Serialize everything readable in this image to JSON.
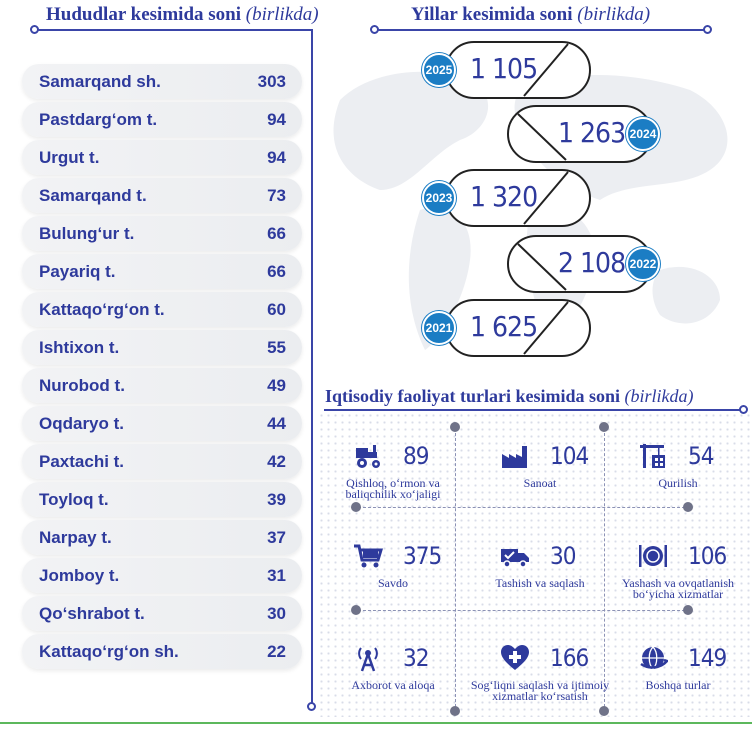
{
  "regions": {
    "title": "Hududlar kesimida soni",
    "unit": "(birlikda)",
    "items": [
      {
        "name": "Samarqand sh.",
        "value": "303"
      },
      {
        "name": "Pastdarg‘om t.",
        "value": "94"
      },
      {
        "name": "Urgut t.",
        "value": "94"
      },
      {
        "name": "Samarqand t.",
        "value": "73"
      },
      {
        "name": "Bulung‘ur t.",
        "value": "66"
      },
      {
        "name": "Payariq t.",
        "value": "66"
      },
      {
        "name": "Kattaqo‘rg‘on t.",
        "value": "60"
      },
      {
        "name": "Ishtixon t.",
        "value": "55"
      },
      {
        "name": "Nurobod t.",
        "value": "49"
      },
      {
        "name": "Oqdaryo t.",
        "value": "44"
      },
      {
        "name": "Paxtachi t.",
        "value": "42"
      },
      {
        "name": "Toyloq t.",
        "value": "39"
      },
      {
        "name": "Narpay t.",
        "value": "37"
      },
      {
        "name": "Jomboy t.",
        "value": "31"
      },
      {
        "name": "Qo‘shrabot t.",
        "value": "30"
      },
      {
        "name": "Kattaqo‘rg‘on sh.",
        "value": "22"
      }
    ]
  },
  "years": {
    "title": "Yillar kesimida soni",
    "unit": "(birlikda)",
    "items": [
      {
        "year": "2025",
        "value": "1 105",
        "side": "left"
      },
      {
        "year": "2024",
        "value": "1 263",
        "side": "right"
      },
      {
        "year": "2023",
        "value": "1 320",
        "side": "left"
      },
      {
        "year": "2022",
        "value": "2 108",
        "side": "right"
      },
      {
        "year": "2021",
        "value": "1 625",
        "side": "left"
      }
    ]
  },
  "activity": {
    "title": "Iqtisodiy faoliyat turlari kesimida soni",
    "unit": "(birlikda)",
    "items": [
      {
        "icon": "tractor-icon",
        "value": "89",
        "label": "Qishloq, o‘rmon va baliqchilik xo‘jaligi"
      },
      {
        "icon": "factory-icon",
        "value": "104",
        "label": "Sanoat"
      },
      {
        "icon": "crane-icon",
        "value": "54",
        "label": "Qurilish"
      },
      {
        "icon": "cart-icon",
        "value": "375",
        "label": "Savdo"
      },
      {
        "icon": "truck-icon",
        "value": "30",
        "label": "Tashish va saqlash"
      },
      {
        "icon": "dining-icon",
        "value": "106",
        "label": "Yashash va ovqatlanish bo‘yicha xizmatlar"
      },
      {
        "icon": "antenna-icon",
        "value": "32",
        "label": "Axborot va aloqa"
      },
      {
        "icon": "health-icon",
        "value": "166",
        "label": "Sog‘liqni saqlash va ijtimoiy xizmatlar ko‘rsatish"
      },
      {
        "icon": "globe-icon",
        "value": "149",
        "label": "Boshqa turlar"
      }
    ]
  },
  "colors": {
    "primary": "#2e3a9c",
    "badge": "#1b7dc4",
    "accent_line": "#5cb85c",
    "row_bg": "#eef0f3"
  },
  "chart_data": [
    {
      "type": "bar",
      "title": "Hududlar kesimida soni",
      "categories": [
        "Samarqand sh.",
        "Pastdarg‘om t.",
        "Urgut t.",
        "Samarqand t.",
        "Bulung‘ur t.",
        "Payariq t.",
        "Kattaqo‘rg‘on t.",
        "Ishtixon t.",
        "Nurobod t.",
        "Oqdaryo t.",
        "Paxtachi t.",
        "Toyloq t.",
        "Narpay t.",
        "Jomboy t.",
        "Qo‘shrabot t.",
        "Kattaqo‘rg‘on sh."
      ],
      "values": [
        303,
        94,
        94,
        73,
        66,
        66,
        60,
        55,
        49,
        44,
        42,
        39,
        37,
        31,
        30,
        22
      ]
    },
    {
      "type": "table",
      "title": "Yillar kesimida soni",
      "categories": [
        "2025",
        "2024",
        "2023",
        "2022",
        "2021"
      ],
      "values": [
        1105,
        1263,
        1320,
        2108,
        1625
      ]
    },
    {
      "type": "table",
      "title": "Iqtisodiy faoliyat turlari kesimida soni",
      "categories": [
        "Qishloq, o‘rmon va baliqchilik xo‘jaligi",
        "Sanoat",
        "Qurilish",
        "Savdo",
        "Tashish va saqlash",
        "Yashash va ovqatlanish bo‘yicha xizmatlar",
        "Axborot va aloqa",
        "Sog‘liqni saqlash va ijtimoiy xizmatlar ko‘rsatish",
        "Boshqa turlar"
      ],
      "values": [
        89,
        104,
        54,
        375,
        30,
        106,
        32,
        166,
        149
      ]
    }
  ]
}
